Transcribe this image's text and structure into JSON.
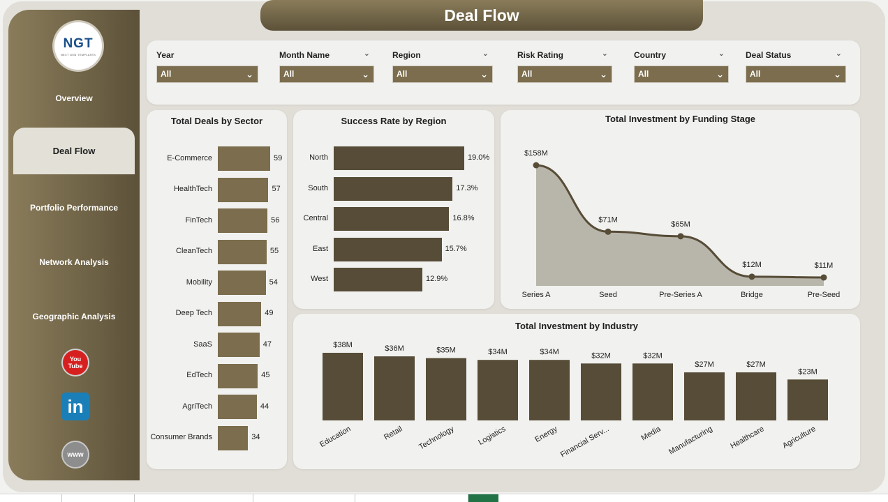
{
  "title": "Deal Flow",
  "logo": {
    "text": "NGT",
    "subtitle": "NEXT GEN TEMPLATES"
  },
  "nav": [
    {
      "label": "Overview",
      "active": false
    },
    {
      "label": "Deal Flow",
      "active": true
    },
    {
      "label": "Portfolio Performance",
      "active": false
    },
    {
      "label": "Network Analysis",
      "active": false
    },
    {
      "label": "Geographic Analysis",
      "active": false
    }
  ],
  "social": {
    "youtube_top": "You",
    "youtube_bottom": "Tube",
    "linkedin": "in",
    "web": "www"
  },
  "filters": [
    {
      "label": "Year",
      "value": "All"
    },
    {
      "label": "Month Name",
      "value": "All"
    },
    {
      "label": "Region",
      "value": "All"
    },
    {
      "label": "Risk Rating",
      "value": "All"
    },
    {
      "label": "Country",
      "value": "All"
    },
    {
      "label": "Deal Status",
      "value": "All"
    }
  ],
  "colors": {
    "bar": "#7b6d4d",
    "bar_dark": "#564c37",
    "area": "#b8b5aa",
    "line": "#564c37"
  },
  "chart_data": [
    {
      "type": "bar",
      "orientation": "horizontal",
      "title": "Total Deals by Sector",
      "categories": [
        "E-Commerce",
        "HealthTech",
        "FinTech",
        "CleanTech",
        "Mobility",
        "Deep Tech",
        "SaaS",
        "EdTech",
        "AgriTech",
        "Consumer Brands"
      ],
      "values": [
        59,
        57,
        56,
        55,
        54,
        49,
        47,
        45,
        44,
        34
      ]
    },
    {
      "type": "bar",
      "orientation": "horizontal",
      "title": "Success Rate by Region",
      "categories": [
        "North",
        "South",
        "Central",
        "East",
        "West"
      ],
      "values": [
        19.0,
        17.3,
        16.8,
        15.7,
        12.9
      ],
      "labels": [
        "19.0%",
        "17.3%",
        "16.8%",
        "15.7%",
        "12.9%"
      ]
    },
    {
      "type": "area",
      "title": "Total Investment by Funding Stage",
      "categories": [
        "Series A",
        "Seed",
        "Pre-Series A",
        "Bridge",
        "Pre-Seed"
      ],
      "values": [
        158,
        71,
        65,
        12,
        11
      ],
      "labels": [
        "$158M",
        "$71M",
        "$65M",
        "$12M",
        "$11M"
      ]
    },
    {
      "type": "bar",
      "title": "Total Investment by Industry",
      "categories": [
        "Education",
        "Retail",
        "Technology",
        "Logistics",
        "Energy",
        "Financial Serv...",
        "Media",
        "Manufacturing",
        "Healthcare",
        "Agriculture"
      ],
      "values": [
        38,
        36,
        35,
        34,
        34,
        32,
        32,
        27,
        27,
        23
      ],
      "labels": [
        "$38M",
        "$36M",
        "$35M",
        "$34M",
        "$34M",
        "$32M",
        "$32M",
        "$27M",
        "$27M",
        "$23M"
      ]
    }
  ]
}
